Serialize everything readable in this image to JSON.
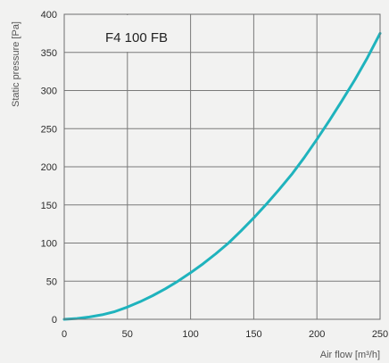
{
  "chart_data": {
    "type": "line",
    "title": "F4 100 FB",
    "xlabel": "Air flow [m³/h]",
    "ylabel": "Static pressure [Pa]",
    "xlim": [
      0,
      250
    ],
    "ylim": [
      0,
      400
    ],
    "x_ticks": [
      0,
      50,
      100,
      150,
      200,
      250
    ],
    "y_ticks": [
      0,
      50,
      100,
      150,
      200,
      250,
      300,
      350,
      400
    ],
    "grid": true,
    "colors": {
      "line": "#1fb3bd",
      "grid": "#7a7a7a",
      "frame": "#6e6e6e",
      "background": "#f2f2f1"
    },
    "series": [
      {
        "name": "",
        "x": [
          0,
          10,
          20,
          30,
          40,
          50,
          60,
          70,
          80,
          90,
          100,
          110,
          120,
          130,
          140,
          150,
          160,
          170,
          180,
          190,
          200,
          210,
          220,
          230,
          240,
          250
        ],
        "y": [
          0,
          1,
          3,
          6,
          10,
          16,
          23,
          31,
          40,
          50,
          61,
          73,
          86,
          100,
          116,
          133,
          151,
          170,
          190,
          212,
          236,
          261,
          287,
          314,
          343,
          375
        ]
      }
    ]
  }
}
